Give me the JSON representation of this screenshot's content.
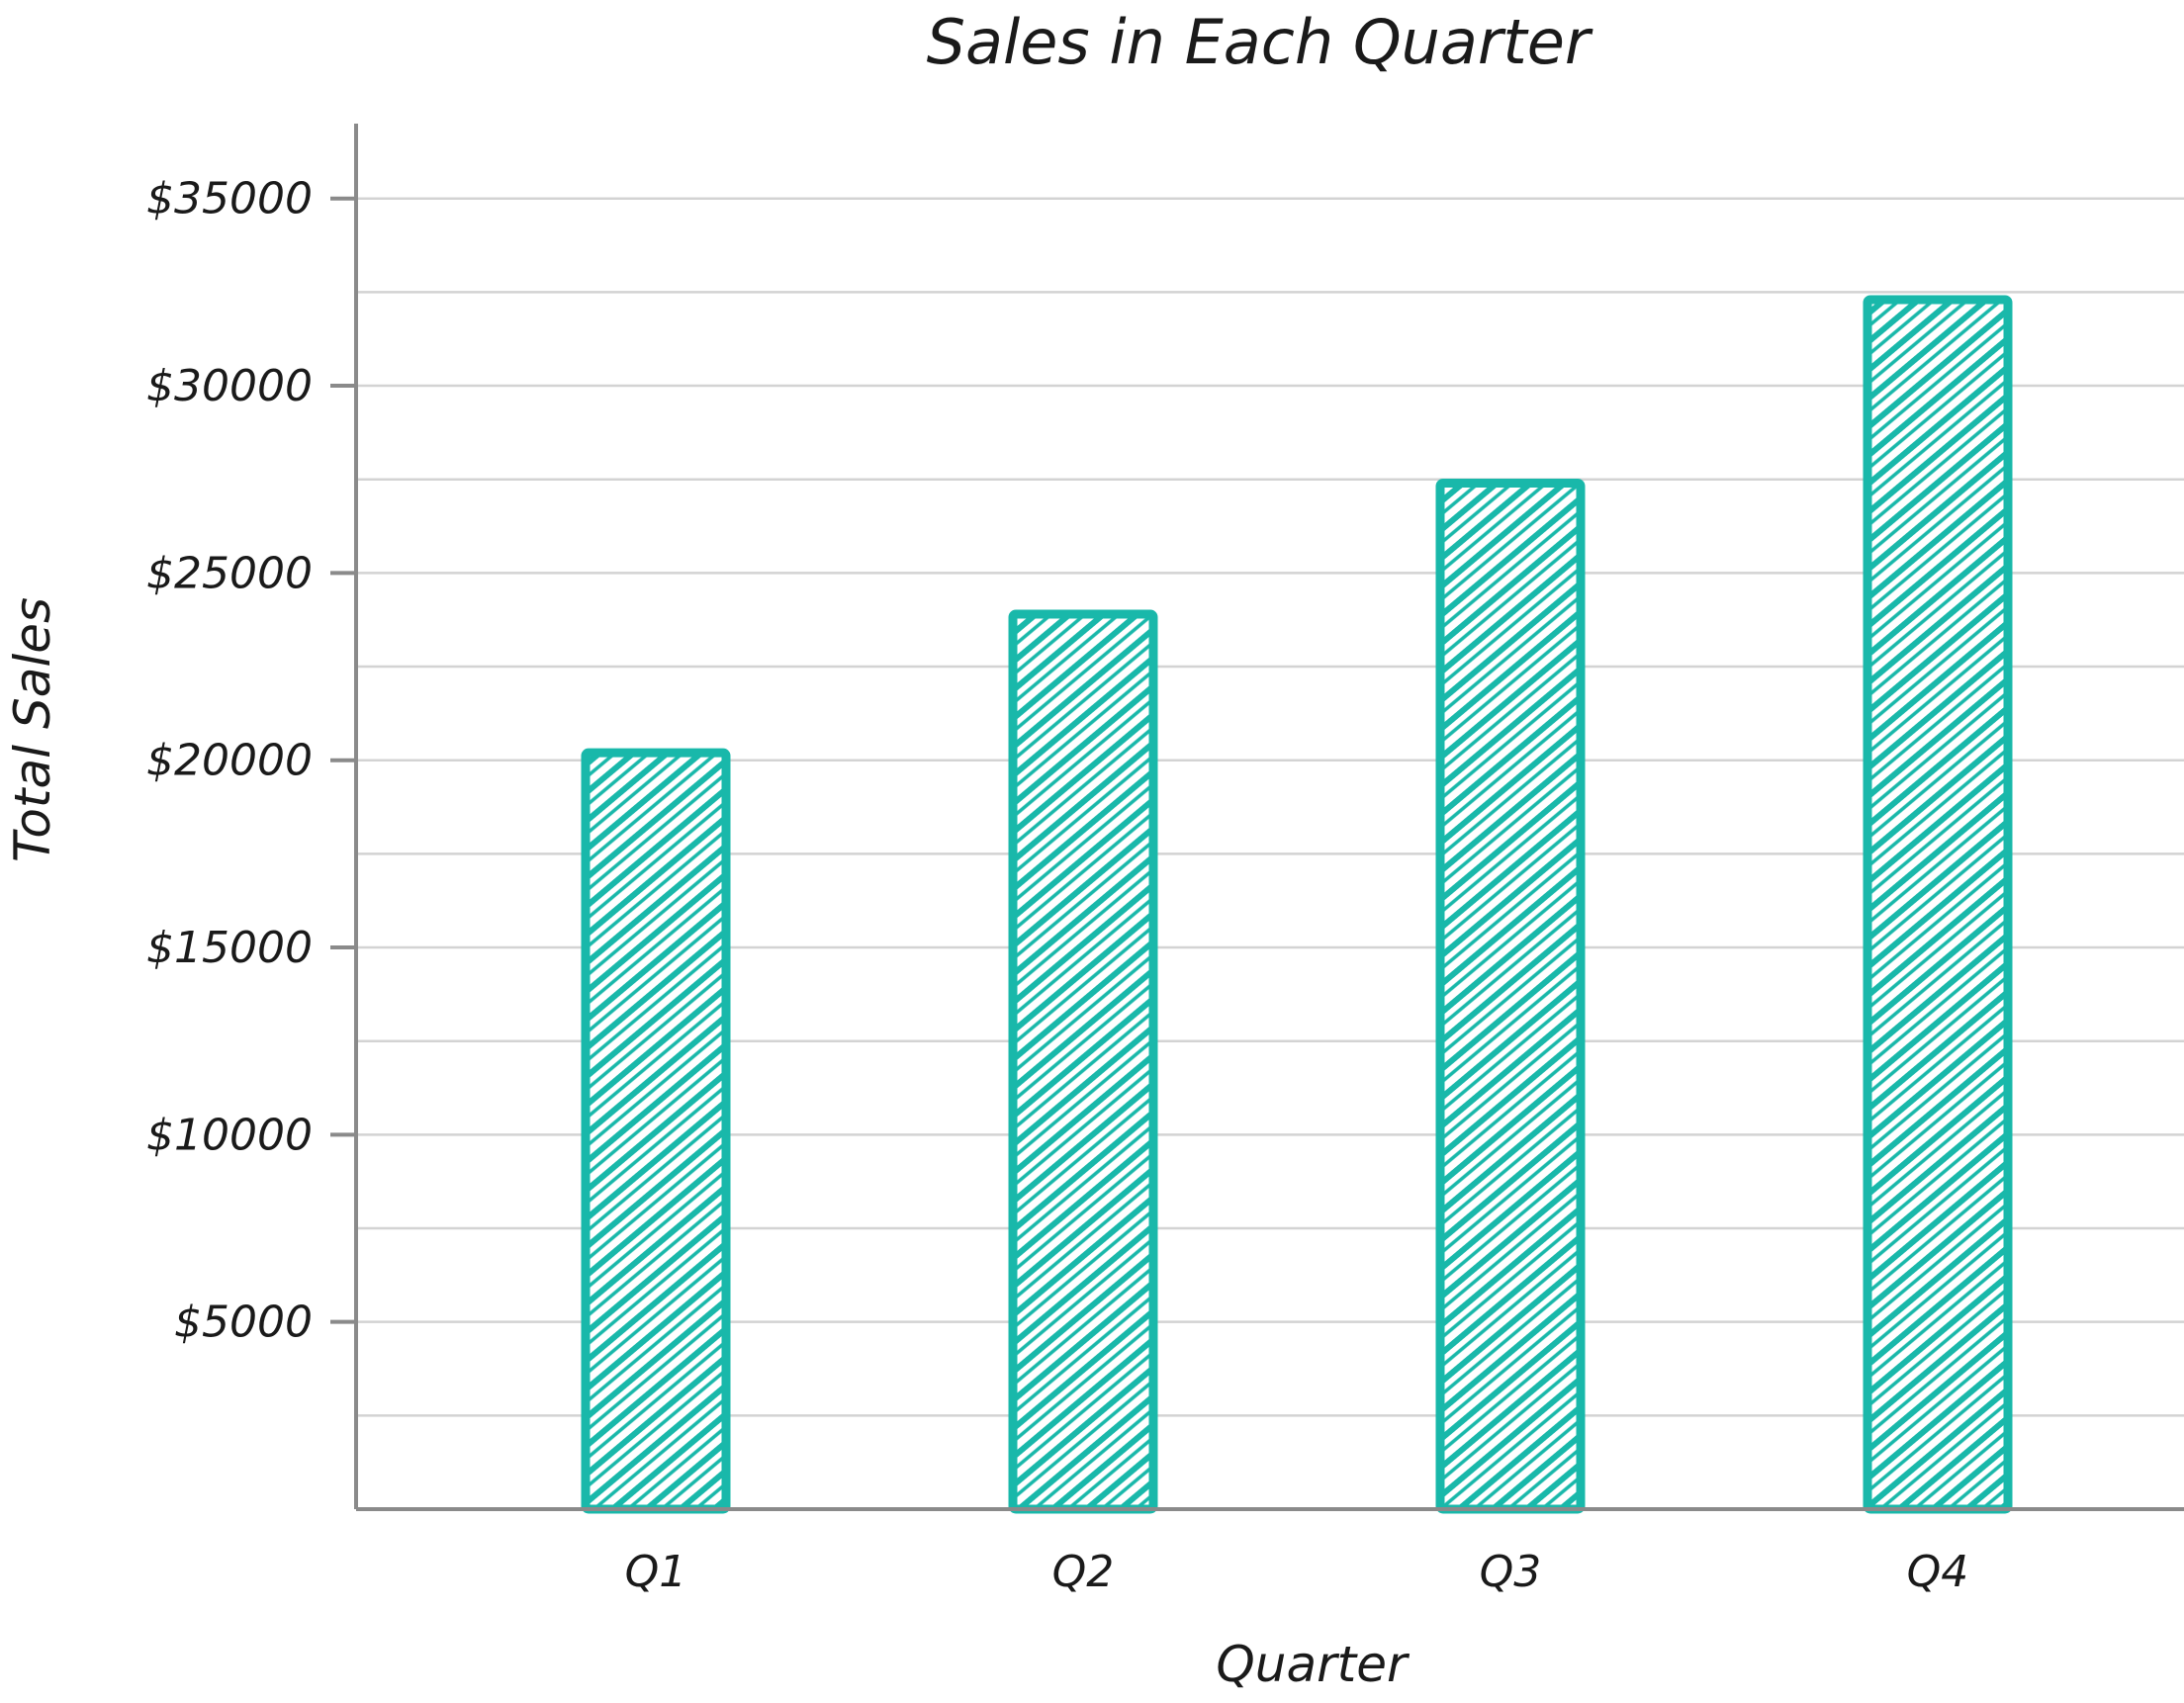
{
  "chart_data": {
    "type": "bar",
    "title": "Sales in Each Quarter",
    "xlabel": "Quarter",
    "ylabel": "Total Sales",
    "categories": [
      "Q1",
      "Q2",
      "Q3",
      "Q4"
    ],
    "values": [
      20200,
      23900,
      27400,
      32300
    ],
    "ylim": [
      0,
      37000
    ],
    "yticks": [
      5000,
      10000,
      15000,
      20000,
      25000,
      30000,
      35000
    ],
    "ytick_labels": [
      "$5000",
      "$10000",
      "$15000",
      "$20000",
      "$25000",
      "$30000",
      "$35000"
    ],
    "grid": true,
    "grid_step": 2500,
    "style": "hand-drawn hatched",
    "colors": {
      "bar": "#19b8aa",
      "axis": "#8a8a8a",
      "grid": "#d3d3d3",
      "text": "#1a1a1a"
    }
  }
}
